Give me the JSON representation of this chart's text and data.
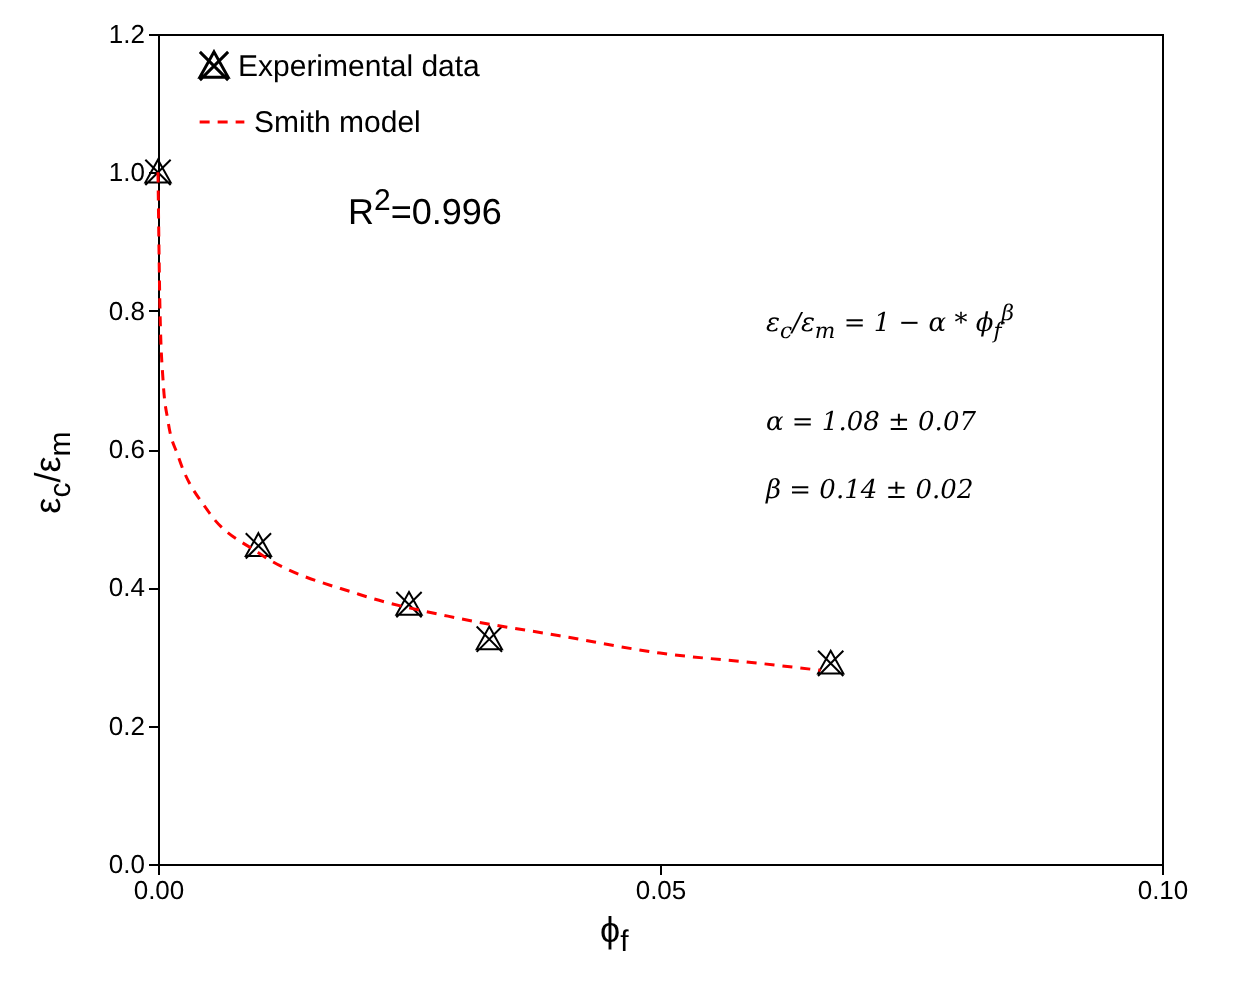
{
  "chart_data": {
    "type": "scatter",
    "xlabel": "ϕ$_{f}$",
    "ylabel": "ε$_{c}$/ε$_{m}$",
    "xlim": [
      0,
      0.1
    ],
    "ylim": [
      0,
      1.2
    ],
    "xticks": [
      {
        "value": 0,
        "label": "0.00"
      },
      {
        "value": 0.05,
        "label": "0.05"
      },
      {
        "value": 0.1,
        "label": "0.10"
      }
    ],
    "yticks": [
      {
        "value": 0,
        "label": "0.0"
      },
      {
        "value": 0.2,
        "label": "0.2"
      },
      {
        "value": 0.4,
        "label": "0.4"
      },
      {
        "value": 0.6,
        "label": "0.6"
      },
      {
        "value": 0.8,
        "label": "0.8"
      },
      {
        "value": 1.0,
        "label": "1.0"
      },
      {
        "value": 1.2,
        "label": "1.2"
      }
    ],
    "grid": false,
    "legend": "top left",
    "annotations": [
      "R$^{2}$=0.996",
      "ε$_{c}$/ε$_{m}$ = 1 − α * ϕ$_{f}$$^{β}$",
      "α = 1.08 ± 0.07",
      "β = 0.14 ± 0.02"
    ],
    "series": [
      {
        "name": "Experimental data",
        "marker": "cross",
        "color": "#000000",
        "x": [
          0,
          0.01,
          0.025,
          0.033,
          0.067
        ],
        "values": [
          1.0,
          0.46,
          0.375,
          0.325,
          0.29
        ]
      },
      {
        "name": "Smith model",
        "type": "line",
        "line_style": "dashed",
        "color": "#ff0000",
        "x": [
          0,
          0.0002,
          0.0005,
          0.001,
          0.002,
          0.005,
          0.01,
          0.02,
          0.03,
          0.04,
          0.05,
          0.06,
          0.066
        ],
        "values": [
          1.0,
          0.8,
          0.7,
          0.64,
          0.59,
          0.51,
          0.45,
          0.39,
          0.355,
          0.33,
          0.305,
          0.29,
          0.28
        ]
      }
    ]
  }
}
